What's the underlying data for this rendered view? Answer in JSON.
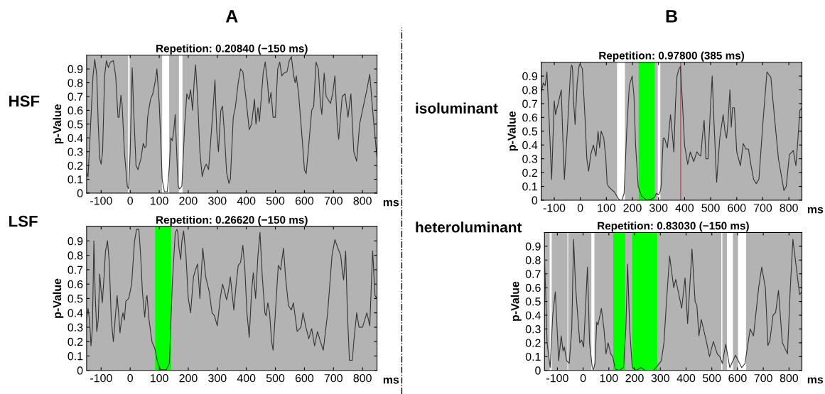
{
  "chart_data": [
    {
      "type": "line",
      "title": "Repetition: 0.20840 (−150 ms)",
      "xlabel": "ms",
      "ylabel": "p-Value",
      "annotations": [
        "A",
        "HSF"
      ],
      "xlim": [
        -150,
        850
      ],
      "ylim": [
        0,
        1
      ],
      "xticks": [
        -100,
        0,
        100,
        200,
        300,
        400,
        500,
        600,
        700,
        800
      ],
      "yticks": [
        0,
        0.1,
        0.2,
        0.3,
        0.4,
        0.5,
        0.6,
        0.7,
        0.8,
        0.9
      ],
      "grid": false,
      "bands": [
        {
          "axis": "x",
          "from": -7,
          "to": -2,
          "color": "#ffffff"
        },
        {
          "axis": "x",
          "from": 110,
          "to": 134,
          "color": "#ffffff"
        },
        {
          "axis": "x",
          "from": 168,
          "to": 180,
          "color": "#ffffff"
        }
      ],
      "series": [
        {
          "color": "#333333",
          "x": [
            -150,
            -145,
            -135,
            -128,
            -122,
            -115,
            -110,
            -105,
            -100,
            -95,
            -88,
            -82,
            -75,
            -68,
            -58,
            -50,
            -42,
            -38,
            -32,
            -28,
            -20,
            -10,
            -5,
            0,
            7,
            12,
            20,
            27,
            37,
            45,
            50,
            55,
            60,
            70,
            78,
            88,
            92,
            100,
            105,
            110,
            118,
            128,
            135,
            140,
            145,
            150,
            155,
            160,
            165,
            170,
            178,
            188,
            195,
            202,
            208,
            215,
            220,
            225,
            232,
            240,
            248,
            255,
            262,
            270,
            285,
            292,
            298,
            304,
            312,
            318,
            324,
            332,
            340,
            345,
            355,
            362,
            372,
            380,
            388,
            398,
            410,
            418,
            428,
            433,
            440,
            445,
            458,
            465,
            473,
            478,
            485,
            492,
            500,
            508,
            515,
            522,
            530,
            540,
            548,
            555,
            563,
            568,
            572,
            580,
            592,
            600,
            606,
            615,
            625,
            632,
            640,
            648,
            655,
            660,
            668,
            675,
            690,
            698,
            705,
            713,
            718,
            730,
            740,
            750,
            760,
            770,
            780,
            790,
            800,
            815,
            825,
            835,
            850
          ],
          "values": [
            0.15,
            0.12,
            0.55,
            0.85,
            0.97,
            0.85,
            0.5,
            0.25,
            0.21,
            0.3,
            0.85,
            0.96,
            0.91,
            0.95,
            0.96,
            0.85,
            0.55,
            0.55,
            0.71,
            0.65,
            0.3,
            0.05,
            0.03,
            0.3,
            0.91,
            0.6,
            0.2,
            0.17,
            0.25,
            0.36,
            0.33,
            0.34,
            0.55,
            0.68,
            0.72,
            0.83,
            0.9,
            0.65,
            0.4,
            0.1,
            0.01,
            0.01,
            0.2,
            0.4,
            0.38,
            0.45,
            0.57,
            0.3,
            0.05,
            0.03,
            0.05,
            0.5,
            0.72,
            0.68,
            0.75,
            0.6,
            0.8,
            0.93,
            0.7,
            0.3,
            0.12,
            0.18,
            0.21,
            0.17,
            0.6,
            0.82,
            0.45,
            0.3,
            0.6,
            0.63,
            0.45,
            0.15,
            0.07,
            0.1,
            0.55,
            0.62,
            0.8,
            0.9,
            0.88,
            0.7,
            0.46,
            0.5,
            0.68,
            0.5,
            0.62,
            0.52,
            0.87,
            0.95,
            0.8,
            0.65,
            0.73,
            0.55,
            0.55,
            0.9,
            0.95,
            0.85,
            0.87,
            0.88,
            0.96,
            0.99,
            0.85,
            0.8,
            0.85,
            0.72,
            0.4,
            0.17,
            0.14,
            0.35,
            0.6,
            0.63,
            0.95,
            0.9,
            0.65,
            0.57,
            0.87,
            0.7,
            0.65,
            0.73,
            0.85,
            0.5,
            0.39,
            0.7,
            0.72,
            0.55,
            0.72,
            0.3,
            0.23,
            0.5,
            0.6,
            0.75,
            0.86,
            0.6,
            0.25
          ]
        }
      ]
    },
    {
      "type": "line",
      "title": "Repetition: 0.26620 (−150 ms)",
      "xlabel": "ms",
      "ylabel": "p-Value",
      "annotations": [
        "LSF"
      ],
      "xlim": [
        -150,
        850
      ],
      "ylim": [
        0,
        1
      ],
      "xticks": [
        -100,
        0,
        100,
        200,
        300,
        400,
        500,
        600,
        700,
        800
      ],
      "yticks": [
        0,
        0.1,
        0.2,
        0.3,
        0.4,
        0.5,
        0.6,
        0.7,
        0.8,
        0.9
      ],
      "grid": false,
      "bands": [
        {
          "axis": "x",
          "from": 86,
          "to": 141,
          "color": "#00ff00"
        }
      ],
      "series": [
        {
          "color": "#333333",
          "x": [
            -150,
            -145,
            -140,
            -135,
            -130,
            -125,
            -120,
            -115,
            -110,
            -105,
            -100,
            -96,
            -90,
            -85,
            -78,
            -72,
            -65,
            -58,
            -52,
            -45,
            -40,
            -35,
            -30,
            -25,
            -20,
            -15,
            -5,
            5,
            15,
            22,
            30,
            36,
            42,
            50,
            55,
            58,
            65,
            75,
            85,
            95,
            105,
            125,
            135,
            145,
            155,
            158,
            161,
            164,
            168,
            174,
            178,
            184,
            192,
            200,
            208,
            218,
            225,
            232,
            240,
            250,
            260,
            272,
            282,
            290,
            300,
            310,
            318,
            325,
            332,
            338,
            345,
            350,
            357,
            365,
            372,
            380,
            388,
            395,
            402,
            410,
            418,
            424,
            432,
            440,
            447,
            455,
            464,
            468,
            474,
            480,
            487,
            492,
            500,
            510,
            518,
            528,
            535,
            545,
            555,
            562,
            575,
            588,
            595,
            605,
            615,
            625,
            635,
            645,
            655,
            665,
            680,
            695,
            705,
            715,
            725,
            730,
            735,
            742,
            748,
            755,
            765,
            770,
            780,
            788,
            800,
            815,
            825,
            835,
            843,
            850
          ],
          "values": [
            0.35,
            0.43,
            0.35,
            0.17,
            0.3,
            0.9,
            0.5,
            0.27,
            0.35,
            0.67,
            0.55,
            0.47,
            0.65,
            0.83,
            0.9,
            0.75,
            0.35,
            0.2,
            0.35,
            0.52,
            0.4,
            0.26,
            0.35,
            0.4,
            0.35,
            0.48,
            0.5,
            0.6,
            0.9,
            0.98,
            0.98,
            0.8,
            0.55,
            0.37,
            0.5,
            0.52,
            0.35,
            0.2,
            0.15,
            0.05,
            0.005,
            0.005,
            0.05,
            0.6,
            0.95,
            0.97,
            0.98,
            0.96,
            0.85,
            0.77,
            0.9,
            0.97,
            0.8,
            0.5,
            0.4,
            0.65,
            0.7,
            0.74,
            0.5,
            0.85,
            0.65,
            0.55,
            0.4,
            0.38,
            0.31,
            0.5,
            0.6,
            0.55,
            0.49,
            0.55,
            0.65,
            0.55,
            0.42,
            0.6,
            0.73,
            0.75,
            0.87,
            0.7,
            0.4,
            0.23,
            0.55,
            0.68,
            0.5,
            0.8,
            0.96,
            0.65,
            0.4,
            0.38,
            0.47,
            0.4,
            0.2,
            0.14,
            0.4,
            0.73,
            0.7,
            0.85,
            0.65,
            0.45,
            0.42,
            0.47,
            0.27,
            0.3,
            0.4,
            0.3,
            0.22,
            0.29,
            0.17,
            0.27,
            0.2,
            0.14,
            0.4,
            0.8,
            0.91,
            0.85,
            0.8,
            0.7,
            0.63,
            0.83,
            0.4,
            0.07,
            0.07,
            0.2,
            0.4,
            0.3,
            0.3,
            0.4,
            0.31,
            0.83,
            0.52,
            0.5
          ]
        }
      ]
    },
    {
      "type": "line",
      "title": "Repetition: 0.97800 (385 ms)",
      "xlabel": "ms",
      "ylabel": "p-Value",
      "annotations": [
        "B",
        "isoluminant"
      ],
      "xlim": [
        -150,
        850
      ],
      "ylim": [
        0,
        1
      ],
      "xticks": [
        -100,
        0,
        100,
        200,
        300,
        400,
        500,
        600,
        700,
        800
      ],
      "yticks": [
        0,
        0.1,
        0.2,
        0.3,
        0.4,
        0.5,
        0.6,
        0.7,
        0.8,
        0.9
      ],
      "grid": false,
      "bands": [
        {
          "axis": "x",
          "from": 141,
          "to": 171,
          "color": "#ffffff"
        },
        {
          "axis": "x",
          "from": 224,
          "to": 285,
          "color": "#00ff00"
        },
        {
          "axis": "x",
          "from": 297,
          "to": 307,
          "color": "#ffffff"
        }
      ],
      "ref_lines": [
        {
          "axis": "x",
          "value": 385,
          "color": "#b05050"
        }
      ],
      "series": [
        {
          "color": "#333333",
          "x": [
            -150,
            -142,
            -135,
            -128,
            -120,
            -110,
            -100,
            -95,
            -85,
            -73,
            -67,
            -61,
            -50,
            -39,
            -37,
            -35,
            -33,
            -31,
            -29,
            -27,
            -20,
            -12,
            -5,
            -1,
            8,
            18,
            25,
            32,
            40,
            50,
            60,
            68,
            74,
            80,
            90,
            98,
            103,
            108,
            118,
            130,
            140,
            146,
            153,
            160,
            168,
            178,
            188,
            199,
            206,
            212,
            222,
            235,
            255,
            275,
            285,
            292,
            300,
            306,
            310,
            318,
            323,
            334,
            340,
            346,
            352,
            359,
            365,
            371,
            378,
            384,
            392,
            400,
            412,
            422,
            435,
            447,
            455,
            462,
            468,
            475,
            482,
            490,
            500,
            506,
            512,
            523,
            535,
            548,
            555,
            561,
            566,
            574,
            579,
            584,
            591,
            600,
            614,
            625,
            635,
            645,
            655,
            665,
            675,
            685,
            700,
            716,
            731,
            740,
            760,
            781,
            790,
            802,
            817,
            827,
            835,
            842,
            850
          ],
          "values": [
            0.78,
            0.85,
            0.83,
            0.93,
            0.6,
            0.15,
            0.72,
            0.62,
            0.7,
            0.8,
            0.45,
            0.15,
            0.5,
            0.88,
            0.94,
            0.97,
            0.98,
            0.97,
            0.92,
            0.75,
            0.55,
            0.85,
            0.97,
            0.99,
            0.95,
            0.6,
            0.3,
            0.21,
            0.33,
            0.4,
            0.32,
            0.5,
            0.38,
            0.5,
            0.45,
            0.3,
            0.12,
            0.1,
            0.08,
            0.06,
            0.03,
            0.01,
            0.0,
            0.0,
            0.05,
            0.5,
            0.83,
            0.9,
            0.75,
            0.4,
            0.1,
            0.03,
            0.0,
            0.01,
            0.02,
            0.05,
            0.04,
            0.06,
            0.1,
            0.45,
            0.45,
            0.38,
            0.5,
            0.62,
            0.5,
            0.35,
            0.7,
            0.9,
            0.95,
            0.97,
            0.7,
            0.4,
            0.26,
            0.35,
            0.28,
            0.35,
            0.33,
            0.32,
            0.45,
            0.58,
            0.3,
            0.3,
            0.7,
            0.9,
            0.6,
            0.13,
            0.45,
            0.62,
            0.5,
            0.45,
            0.55,
            0.8,
            0.53,
            0.67,
            0.67,
            0.35,
            0.25,
            0.41,
            0.37,
            0.37,
            0.25,
            0.15,
            0.12,
            0.15,
            0.55,
            0.93,
            0.89,
            0.7,
            0.3,
            0.07,
            0.1,
            0.33,
            0.36,
            0.25,
            0.45,
            0.65,
            0.67
          ]
        }
      ]
    },
    {
      "type": "line",
      "title": "Repetition: 0.83030 (−150 ms)",
      "xlabel": "ms",
      "ylabel": "p-Value",
      "annotations": [
        "heteroluminant"
      ],
      "xlim": [
        -150,
        850
      ],
      "ylim": [
        0,
        1
      ],
      "xticks": [
        -100,
        0,
        100,
        200,
        300,
        400,
        500,
        600,
        700,
        800
      ],
      "yticks": [
        0,
        0.1,
        0.2,
        0.3,
        0.4,
        0.5,
        0.6,
        0.7,
        0.8,
        0.9
      ],
      "grid": false,
      "bands": [
        {
          "axis": "x",
          "from": -130,
          "to": -122,
          "color": "#ffffff"
        },
        {
          "axis": "x",
          "from": -61,
          "to": -58,
          "color": "#ffffff"
        },
        {
          "axis": "x",
          "from": 32,
          "to": 44,
          "color": "#ffffff"
        },
        {
          "axis": "x",
          "from": 117,
          "to": 164,
          "color": "#00ff00"
        },
        {
          "axis": "x",
          "from": 191,
          "to": 288,
          "color": "#00ff00"
        },
        {
          "axis": "x",
          "from": 537,
          "to": 541,
          "color": "#ffffff"
        },
        {
          "axis": "x",
          "from": 559,
          "to": 582,
          "color": "#ffffff"
        },
        {
          "axis": "x",
          "from": 602,
          "to": 633,
          "color": "#ffffff"
        }
      ],
      "series": [
        {
          "color": "#333333",
          "x": [
            -150,
            -140,
            -128,
            -118,
            -108,
            -95,
            -85,
            -78,
            -73,
            -64,
            -54,
            -44,
            -37,
            -29,
            -13,
            -6,
            2,
            17,
            25,
            35,
            40,
            46,
            53,
            58,
            71,
            81,
            89,
            97,
            107,
            115,
            125,
            140,
            157,
            166,
            173,
            181,
            191,
            207,
            224,
            242,
            273,
            288,
            304,
            314,
            324,
            336,
            352,
            360,
            383,
            396,
            406,
            423,
            435,
            442,
            450,
            459,
            480,
            491,
            506,
            521,
            531,
            541,
            554,
            570,
            592,
            616,
            629,
            649,
            662,
            682,
            694,
            708,
            718,
            726,
            738,
            748,
            759,
            774,
            794,
            805,
            815,
            841,
            850
          ],
          "values": [
            0.85,
            0.2,
            0.02,
            0.4,
            0.57,
            0.07,
            0.25,
            0.14,
            0.17,
            0.07,
            0.05,
            0.3,
            0.95,
            0.6,
            0.2,
            0.22,
            0.17,
            0.75,
            0.2,
            0.03,
            0.0,
            0.05,
            0.35,
            0.33,
            0.45,
            0.3,
            0.12,
            0.2,
            0.12,
            0.1,
            0.01,
            0.0,
            0.02,
            0.3,
            0.77,
            0.3,
            0.02,
            0.0,
            0.02,
            0.0,
            0.0,
            0.03,
            0.07,
            0.2,
            0.5,
            0.83,
            0.6,
            0.66,
            0.45,
            0.67,
            0.34,
            0.88,
            0.5,
            0.47,
            0.25,
            0.37,
            0.2,
            0.1,
            0.21,
            0.12,
            0.1,
            0.05,
            0.19,
            0.02,
            0.11,
            0.02,
            0.05,
            0.3,
            0.25,
            0.6,
            0.75,
            0.6,
            0.18,
            0.22,
            0.4,
            0.42,
            0.58,
            0.2,
            0.12,
            0.6,
            0.95,
            0.55,
            0.57
          ]
        }
      ]
    }
  ]
}
